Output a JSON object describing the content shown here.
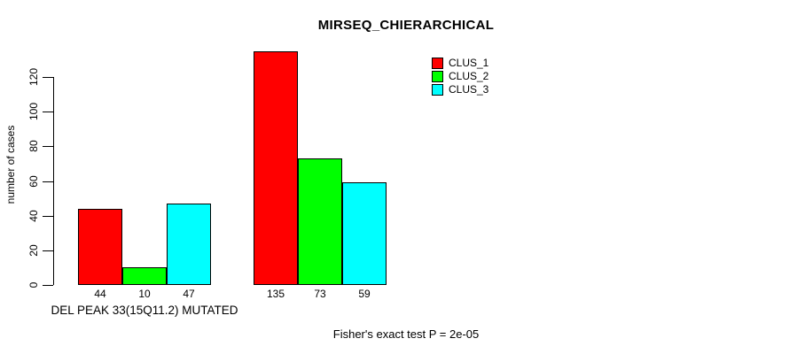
{
  "chart_data": {
    "type": "bar",
    "title": "MIRSEQ_CHIERARCHICAL",
    "ylabel": "number of cases",
    "xlabel": "",
    "yticks": [
      0,
      20,
      40,
      60,
      80,
      100,
      120
    ],
    "ylim": [
      0,
      137
    ],
    "grid": false,
    "legend_position": "top-right",
    "series": [
      {
        "name": "CLUS_1",
        "color": "#FF0000"
      },
      {
        "name": "CLUS_2",
        "color": "#00FF00"
      },
      {
        "name": "CLUS_3",
        "color": "#00FFFF"
      }
    ],
    "groups": [
      {
        "label": "DEL PEAK 33(15Q11.2) MUTATED",
        "values": [
          44,
          10,
          47
        ]
      },
      {
        "label": "",
        "values": [
          135,
          73,
          59
        ]
      }
    ],
    "bar_values_shown": true,
    "footnote": "Fisher's exact test P = 2e-05"
  }
}
